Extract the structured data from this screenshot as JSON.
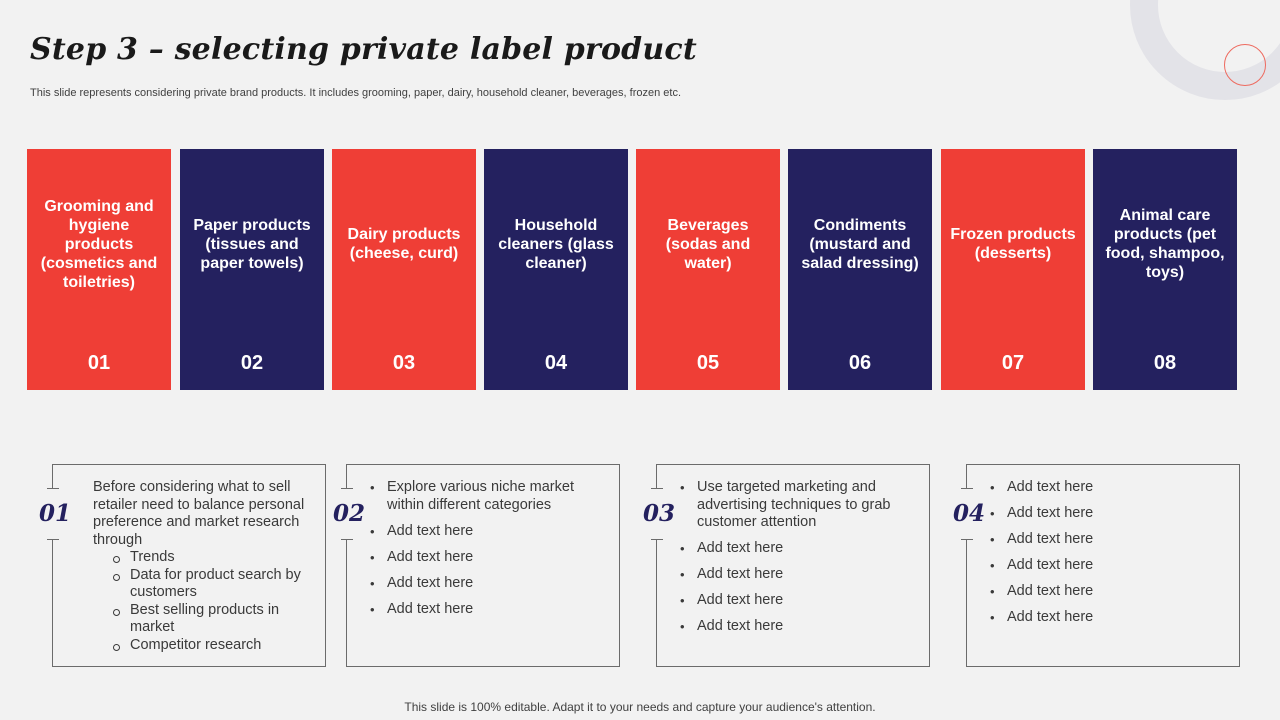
{
  "title": "Step 3 – selecting private label product",
  "subtitle": "This slide represents considering private brand products. It includes grooming, paper, dairy, household cleaner, beverages, frozen etc.",
  "colors": {
    "red": "#ef3e36",
    "navy": "#24215f",
    "background": "#f2f2f2"
  },
  "categories": [
    {
      "label": "Grooming and hygiene products (cosmetics  and toiletries)",
      "number": "01"
    },
    {
      "label": "Paper products (tissues and paper towels)",
      "number": "02"
    },
    {
      "label": "Dairy products (cheese, curd)",
      "number": "03"
    },
    {
      "label": "Household cleaners (glass cleaner)",
      "number": "04"
    },
    {
      "label": "Beverages (sodas and water)",
      "number": "05"
    },
    {
      "label": "Condiments (mustard and salad dressing)",
      "number": "06"
    },
    {
      "label": "Frozen products (desserts)",
      "number": "07"
    },
    {
      "label": "Animal care products (pet food, shampoo, toys)",
      "number": "08"
    }
  ],
  "boxes": [
    {
      "number": "01",
      "intro": "Before considering what to sell retailer need to balance personal preference and market research through",
      "subitems": [
        "Trends",
        "Data for product search by customers",
        "Best selling products in market",
        "Competitor research"
      ]
    },
    {
      "number": "02",
      "bullets": [
        "Explore various niche market within different categories",
        "Add text here",
        "Add text here",
        "Add text here",
        "Add text here"
      ]
    },
    {
      "number": "03",
      "bullets": [
        "Use targeted marketing and advertising techniques to grab customer attention",
        "Add text here",
        "Add text here",
        "Add text here",
        "Add text here"
      ]
    },
    {
      "number": "04",
      "bullets": [
        "Add text here",
        "Add text here",
        "Add text here",
        "Add text here",
        "Add text here",
        "Add text here"
      ]
    }
  ],
  "footer": "This slide is 100% editable. Adapt it to your needs and capture your audience's attention."
}
